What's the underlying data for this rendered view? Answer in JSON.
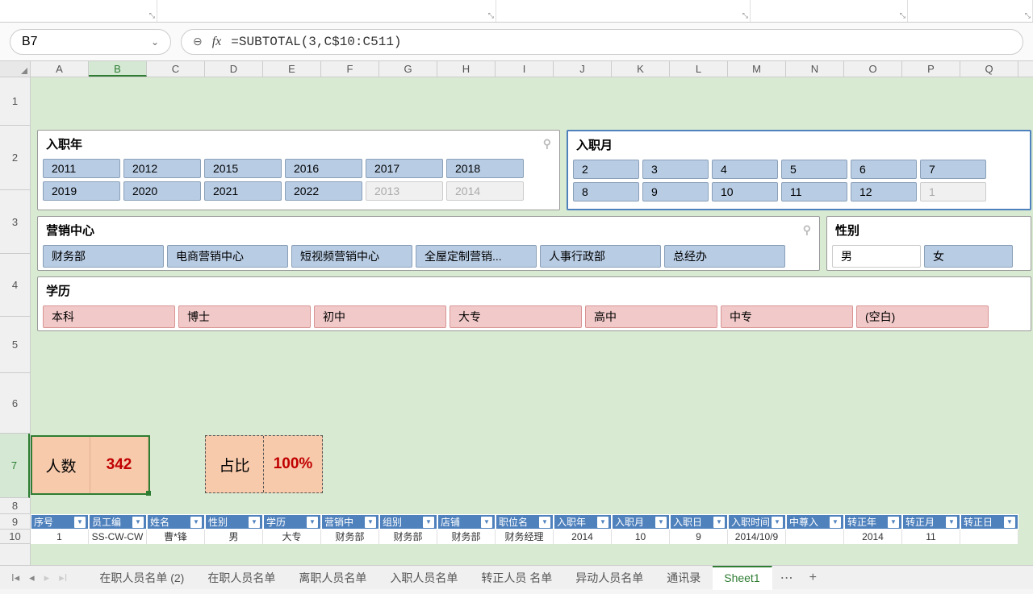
{
  "formula_bar": {
    "cell_ref": "B7",
    "fx_label": "fx",
    "formula": "=SUBTOTAL(3,C$10:C511)"
  },
  "columns": [
    "A",
    "B",
    "C",
    "D",
    "E",
    "F",
    "G",
    "H",
    "I",
    "J",
    "K",
    "L",
    "M",
    "N",
    "O",
    "P",
    "Q"
  ],
  "active_col": "B",
  "rows": [
    {
      "n": "1",
      "h": 60
    },
    {
      "n": "2",
      "h": 80
    },
    {
      "n": "3",
      "h": 79
    },
    {
      "n": "4",
      "h": 78
    },
    {
      "n": "5",
      "h": 70
    },
    {
      "n": "6",
      "h": 75
    },
    {
      "n": "7",
      "h": 80
    },
    {
      "n": "8",
      "h": 20
    },
    {
      "n": "9",
      "h": 19
    },
    {
      "n": "10",
      "h": 18
    }
  ],
  "active_row": "7",
  "slicers": {
    "year": {
      "title": "入职年",
      "items": [
        {
          "label": "2011"
        },
        {
          "label": "2012"
        },
        {
          "label": "2015"
        },
        {
          "label": "2016"
        },
        {
          "label": "2017"
        },
        {
          "label": "2018"
        },
        {
          "label": "2019"
        },
        {
          "label": "2020"
        },
        {
          "label": "2021"
        },
        {
          "label": "2022"
        },
        {
          "label": "2013",
          "dim": true
        },
        {
          "label": "2014",
          "dim": true
        }
      ]
    },
    "month": {
      "title": "入职月",
      "items": [
        {
          "label": "2"
        },
        {
          "label": "3"
        },
        {
          "label": "4"
        },
        {
          "label": "5"
        },
        {
          "label": "6"
        },
        {
          "label": "7"
        },
        {
          "label": "8"
        },
        {
          "label": "9"
        },
        {
          "label": "10"
        },
        {
          "label": "11"
        },
        {
          "label": "12"
        },
        {
          "label": "1",
          "dim": true
        }
      ]
    },
    "dept": {
      "title": "营销中心",
      "items": [
        {
          "label": "财务部"
        },
        {
          "label": "电商营销中心"
        },
        {
          "label": "短视频营销中心"
        },
        {
          "label": "全屋定制营销..."
        },
        {
          "label": "人事行政部"
        },
        {
          "label": "总经办"
        }
      ]
    },
    "gender": {
      "title": "性别",
      "items": [
        {
          "label": "男",
          "white": true
        },
        {
          "label": "女"
        }
      ]
    },
    "edu": {
      "title": "学历",
      "items": [
        {
          "label": "本科"
        },
        {
          "label": "博士"
        },
        {
          "label": "初中"
        },
        {
          "label": "大专"
        },
        {
          "label": "高中"
        },
        {
          "label": "中专"
        },
        {
          "label": "(空白)"
        }
      ]
    }
  },
  "kpi": {
    "count_label": "人数",
    "count_value": "342",
    "ratio_label": "占比",
    "ratio_value": "100%"
  },
  "table": {
    "headers": [
      "序号",
      "员工编",
      "姓名",
      "性别",
      "学历",
      "营销中",
      "组别",
      "店铺",
      "职位名",
      "入职年",
      "入职月",
      "入职日",
      "入职时间",
      "中尊入",
      "转正年",
      "转正月",
      "转正日"
    ],
    "row1": [
      "1",
      "SS-CW-CW",
      "曹*锋",
      "男",
      "大专",
      "财务部",
      "财务部",
      "财务部",
      "财务经理",
      "2014",
      "10",
      "9",
      "2014/10/9",
      "",
      "2014",
      "11",
      ""
    ]
  },
  "sheet_tabs": {
    "tabs": [
      "在职人员名单 (2)",
      "在职人员名单",
      "离职人员名单",
      "入职人员名单",
      "转正人员 名单",
      "异动人员名单",
      "通讯录",
      "Sheet1"
    ],
    "active": "Sheet1"
  },
  "colors": {
    "sheet_bg": "#d9ead3",
    "slicer_blue": "#b8cce4",
    "slicer_pink": "#f2c9c9",
    "kpi_bg": "#f7caac",
    "header_blue": "#4f81bd",
    "accent": "#2e7d32",
    "value_red": "#c00000"
  }
}
